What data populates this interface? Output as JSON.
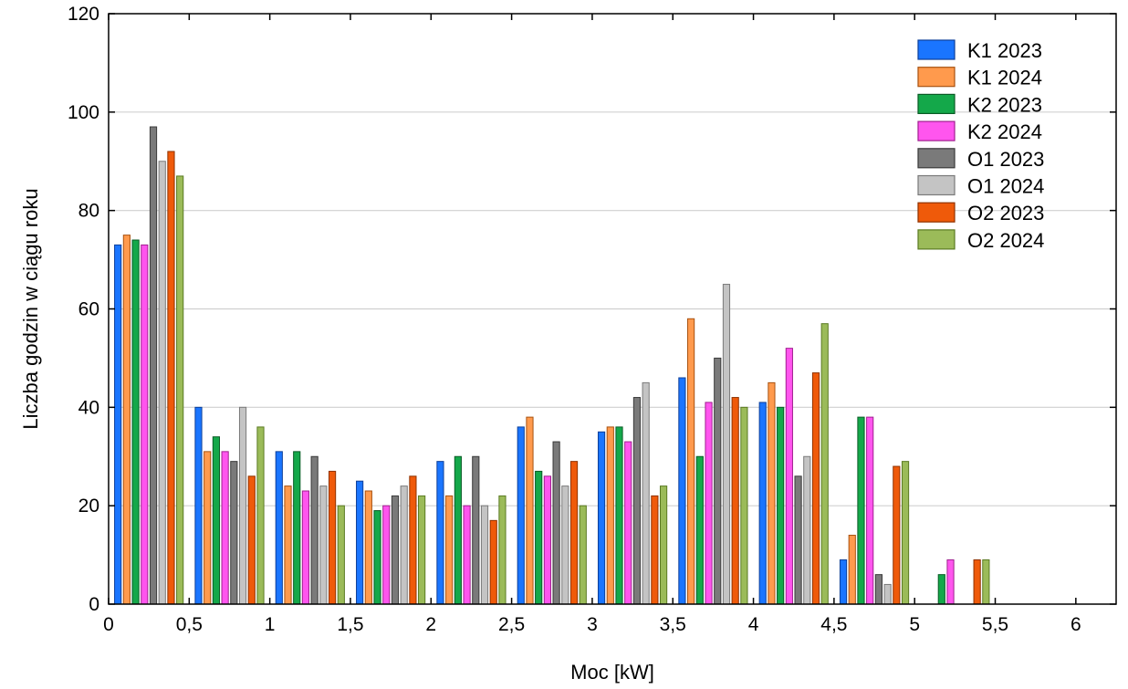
{
  "chart_data": {
    "type": "bar",
    "xlabel": "Moc [kW]",
    "ylabel": "Liczba godzin w ciągu roku",
    "xlim": [
      0,
      6.25
    ],
    "ylim": [
      0,
      120
    ],
    "grid": "horizontal",
    "legend": "top-right",
    "x_ticks": [
      {
        "value": 0,
        "label": "0"
      },
      {
        "value": 0.5,
        "label": "0,5"
      },
      {
        "value": 1,
        "label": "1"
      },
      {
        "value": 1.5,
        "label": "1,5"
      },
      {
        "value": 2,
        "label": "2"
      },
      {
        "value": 2.5,
        "label": "2,5"
      },
      {
        "value": 3,
        "label": "3"
      },
      {
        "value": 3.5,
        "label": "3,5"
      },
      {
        "value": 4,
        "label": "4"
      },
      {
        "value": 4.5,
        "label": "4,5"
      },
      {
        "value": 5,
        "label": "5"
      },
      {
        "value": 5.5,
        "label": "5,5"
      },
      {
        "value": 6,
        "label": "6"
      }
    ],
    "y_ticks": [
      {
        "value": 0,
        "label": "0"
      },
      {
        "value": 20,
        "label": "20"
      },
      {
        "value": 40,
        "label": "40"
      },
      {
        "value": 60,
        "label": "60"
      },
      {
        "value": 80,
        "label": "80"
      },
      {
        "value": 100,
        "label": "100"
      },
      {
        "value": 120,
        "label": "120"
      }
    ],
    "bins": [
      [
        0,
        0.5
      ],
      [
        0.5,
        1
      ],
      [
        1,
        1.5
      ],
      [
        1.5,
        2
      ],
      [
        2,
        2.5
      ],
      [
        2.5,
        3
      ],
      [
        3,
        3.5
      ],
      [
        3.5,
        4
      ],
      [
        4,
        4.5
      ],
      [
        4.5,
        5
      ],
      [
        5,
        5.5
      ],
      [
        5.5,
        6
      ]
    ],
    "series": [
      {
        "name": "K1 2023",
        "color": "#1a75ff",
        "stroke": "#0d3f99",
        "values": [
          73,
          40,
          31,
          25,
          29,
          36,
          35,
          46,
          41,
          9,
          0,
          0
        ]
      },
      {
        "name": "K1 2024",
        "color": "#ff9a4d",
        "stroke": "#a85210",
        "values": [
          75,
          31,
          24,
          23,
          22,
          38,
          36,
          58,
          45,
          14,
          0,
          0
        ]
      },
      {
        "name": "K2 2023",
        "color": "#14a84a",
        "stroke": "#0a5c26",
        "values": [
          74,
          34,
          31,
          19,
          30,
          27,
          36,
          30,
          40,
          38,
          6,
          0
        ]
      },
      {
        "name": "K2 2024",
        "color": "#ff55ee",
        "stroke": "#a0208f",
        "values": [
          73,
          31,
          23,
          20,
          20,
          26,
          33,
          41,
          52,
          38,
          9,
          0
        ]
      },
      {
        "name": "O1 2023",
        "color": "#7a7a7a",
        "stroke": "#3a3a3a",
        "values": [
          97,
          29,
          30,
          22,
          30,
          33,
          42,
          50,
          26,
          6,
          0,
          0
        ]
      },
      {
        "name": "O1 2024",
        "color": "#c4c4c4",
        "stroke": "#7a7a7a",
        "values": [
          90,
          40,
          24,
          24,
          20,
          24,
          45,
          65,
          30,
          4,
          0,
          0
        ]
      },
      {
        "name": "O2 2023",
        "color": "#ef5a0a",
        "stroke": "#8f3200",
        "values": [
          92,
          26,
          27,
          26,
          17,
          29,
          22,
          42,
          47,
          28,
          9,
          0
        ]
      },
      {
        "name": "O2 2024",
        "color": "#9bbb59",
        "stroke": "#5a7a22",
        "values": [
          87,
          36,
          20,
          22,
          22,
          20,
          24,
          40,
          57,
          29,
          9,
          0
        ]
      }
    ]
  }
}
